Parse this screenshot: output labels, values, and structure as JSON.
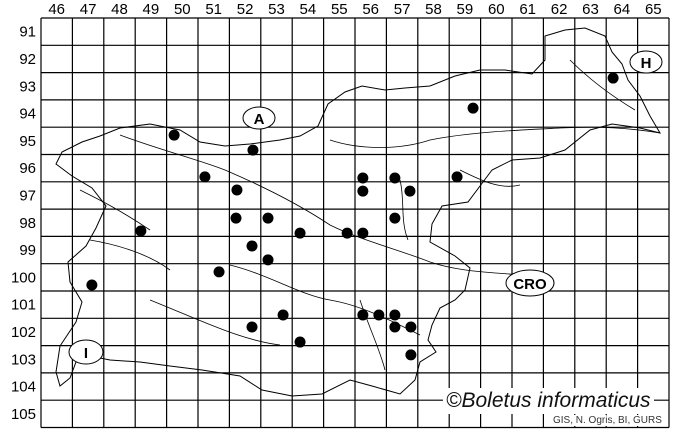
{
  "map": {
    "column_labels": [
      "46",
      "47",
      "48",
      "49",
      "50",
      "51",
      "52",
      "53",
      "54",
      "55",
      "56",
      "57",
      "58",
      "59",
      "60",
      "61",
      "62",
      "63",
      "64",
      "65"
    ],
    "row_labels": [
      "91",
      "92",
      "93",
      "94",
      "95",
      "96",
      "97",
      "98",
      "99",
      "100",
      "101",
      "102",
      "103",
      "104",
      "105"
    ],
    "neighbor_labels": [
      {
        "id": "austria",
        "text": "A"
      },
      {
        "id": "hungary",
        "text": "H"
      },
      {
        "id": "croatia",
        "text": "CRO"
      },
      {
        "id": "italy",
        "text": "I"
      }
    ],
    "records_grid_units": [
      [
        50.24,
        95.29
      ],
      [
        52.75,
        95.84
      ],
      [
        51.22,
        96.82
      ],
      [
        52.24,
        97.3
      ],
      [
        52.21,
        98.33
      ],
      [
        53.23,
        98.33
      ],
      [
        52.72,
        99.35
      ],
      [
        53.23,
        99.86
      ],
      [
        54.25,
        98.88
      ],
      [
        49.18,
        98.8
      ],
      [
        51.67,
        100.3
      ],
      [
        47.62,
        100.78
      ],
      [
        56.25,
        96.86
      ],
      [
        56.25,
        97.34
      ],
      [
        57.27,
        96.86
      ],
      [
        57.75,
        97.34
      ],
      [
        57.27,
        98.33
      ],
      [
        55.75,
        98.88
      ],
      [
        56.25,
        98.88
      ],
      [
        59.25,
        96.82
      ],
      [
        59.76,
        94.3
      ],
      [
        64.22,
        93.2
      ],
      [
        53.71,
        101.88
      ],
      [
        52.72,
        102.32
      ],
      [
        54.25,
        102.87
      ],
      [
        56.25,
        101.88
      ],
      [
        56.76,
        101.88
      ],
      [
        57.27,
        101.88
      ],
      [
        57.27,
        102.32
      ],
      [
        57.78,
        102.32
      ],
      [
        57.78,
        103.34
      ]
    ],
    "dot_color": "#000000",
    "line_color": "#000000"
  },
  "watermark": "©Boletus informaticus",
  "credit": "GIS, N. Ogris, BI, GURS"
}
